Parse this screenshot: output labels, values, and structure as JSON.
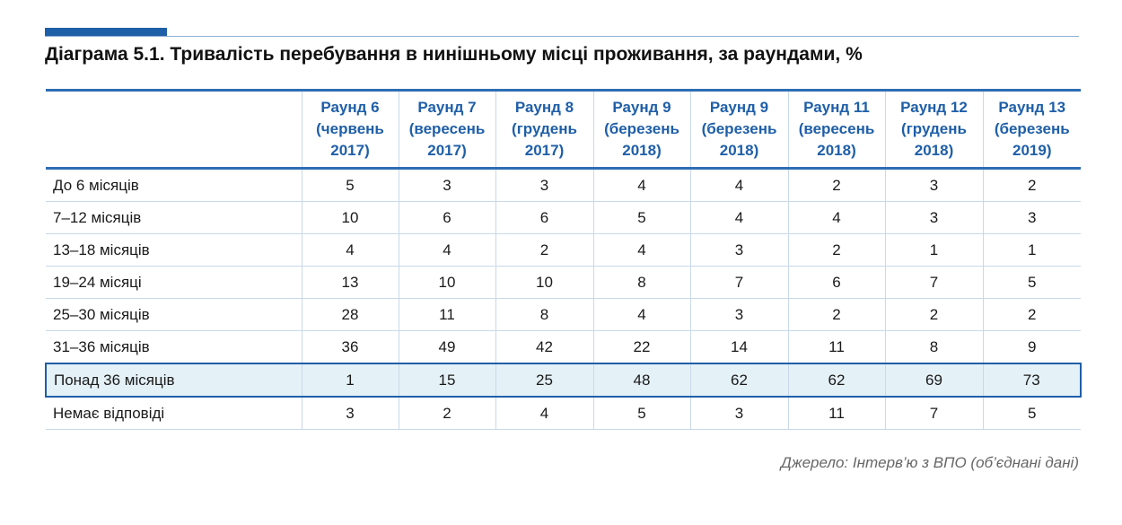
{
  "chart_data": {
    "type": "table",
    "title": "Діаграма 5.1. Тривалість перебування в нинішньому місці проживання, за раундами, %",
    "columns": [
      [
        "Раунд 6",
        "(червень",
        "2017)"
      ],
      [
        "Раунд 7",
        "(вересень",
        "2017)"
      ],
      [
        "Раунд 8",
        "(грудень",
        "2017)"
      ],
      [
        "Раунд 9",
        "(березень",
        "2018)"
      ],
      [
        "Раунд 9",
        "(березень",
        "2018)"
      ],
      [
        "Раунд 11",
        "(вересень",
        "2018)"
      ],
      [
        "Раунд 12",
        "(грудень",
        "2018)"
      ],
      [
        "Раунд 13",
        "(березень",
        "2019)"
      ]
    ],
    "rows": [
      {
        "label": "До 6 місяців",
        "values": [
          5,
          3,
          3,
          4,
          4,
          2,
          3,
          2
        ],
        "highlight": false
      },
      {
        "label": "7–12 місяців",
        "values": [
          10,
          6,
          6,
          5,
          4,
          4,
          3,
          3
        ],
        "highlight": false
      },
      {
        "label": "13–18 місяців",
        "values": [
          4,
          4,
          2,
          4,
          3,
          2,
          1,
          1
        ],
        "highlight": false
      },
      {
        "label": "19–24 місяці",
        "values": [
          13,
          10,
          10,
          8,
          7,
          6,
          7,
          5
        ],
        "highlight": false
      },
      {
        "label": "25–30 місяців",
        "values": [
          28,
          11,
          8,
          4,
          3,
          2,
          2,
          2
        ],
        "highlight": false
      },
      {
        "label": "31–36 місяців",
        "values": [
          36,
          49,
          42,
          22,
          14,
          11,
          8,
          9
        ],
        "highlight": false
      },
      {
        "label": "Понад 36 місяців",
        "values": [
          1,
          15,
          25,
          48,
          62,
          62,
          69,
          73
        ],
        "highlight": true
      },
      {
        "label": "Немає відповіді",
        "values": [
          3,
          2,
          4,
          5,
          3,
          11,
          7,
          5
        ],
        "highlight": false
      }
    ],
    "source": "Джерело: Інтерв’ю з ВПО (об’єднані дані)"
  },
  "colors": {
    "accent": "#1f5fa8",
    "header_text": "#1f5fa8",
    "highlight_fill": "#e4f1f7",
    "grid": "#c9d9ea"
  }
}
